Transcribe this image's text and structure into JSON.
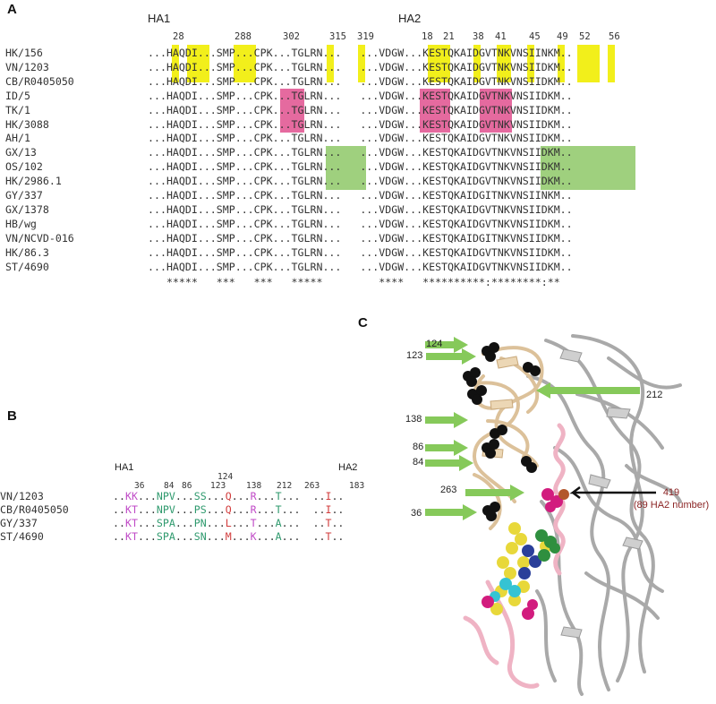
{
  "panels": {
    "a": "A",
    "b": "B",
    "c": "C"
  },
  "panel_a": {
    "ha1_label": "HA1",
    "ha2_label": "HA2",
    "positions": [
      "28",
      "288",
      "302",
      "315",
      "319",
      "18",
      "21",
      "38",
      "41",
      "45",
      "49",
      "52",
      "56"
    ],
    "rows": [
      {
        "name": "HK/156",
        "seq": "...HAQDI...SMP...CPK...TGLRN...   ...VDGW...KESTQKAIDGVTNKVNSIINKM.."
      },
      {
        "name": "VN/1203",
        "seq": "...HAQDI...SMP...CPK...TGLRN...   ...VDGW...KESTQKAIDGVTNKVNSIIDKM.."
      },
      {
        "name": "CB/R0405050",
        "seq": "...HAQDI...SMP...CPK...TGLRN...   ...VDGW...KESTQKAIDGVTNKVNSIIDKM.."
      },
      {
        "name": "ID/5",
        "seq": "...HAQDI...SMP...CPK...TGLRN...   ...VDGW...KESTQKAIDGVTNKVNSIIDKM.."
      },
      {
        "name": "TK/1",
        "seq": "...HAQDI...SMP...CPK...TGLRN...   ...VDGW...KESTQKAIDGVTNKVNSIIDKM.."
      },
      {
        "name": "HK/3088",
        "seq": "...HAQDI...SMP...CPK...TGLRN...   ...VDGW...KESTQKAIDGVTNKVNSIIDKM.."
      },
      {
        "name": "AH/1",
        "seq": "...HAQDI...SMP...CPK...TGLRN...   ...VDGW...KESTQKAIDGVTNKVNSIIDKM.."
      },
      {
        "name": "GX/13",
        "seq": "...HAQDI...SMP...CPK...TGLRN...   ...VDGW...KESTQKAIDGVTNKVNSIIDKM.."
      },
      {
        "name": "OS/102",
        "seq": "...HAQDI...SMP...CPK...TGLRN...   ...VDGW...KESTQKAIDGVTNKVNSIIDKM.."
      },
      {
        "name": "HK/2986.1",
        "seq": "...HAQDI...SMP...CPK...TGLRN...   ...VDGW...KESTQKAIDGVTNKVNSIIDKM.."
      },
      {
        "name": "GY/337",
        "seq": "...HAQDI...SMP...CPK...TGLRN...   ...VDGW...KESTQKAIDGITNKVNSIINKM.."
      },
      {
        "name": "GX/1378",
        "seq": "...HAQDI...SMP...CPK...TGLRN...   ...VDGW...KESTQKAIDGVTNKVNSIIDKM.."
      },
      {
        "name": "HB/wg",
        "seq": "...HAQDI...SMP...CPK...TGLRN...   ...VDGW...KESTQKAIDGVTNKVNSIIDKM.."
      },
      {
        "name": "VN/NCVD-016",
        "seq": "...HAQDI...SMP...CPK...TGLRN...   ...VDGW...KESTQKAIDGITNKVNSIIDKM.."
      },
      {
        "name": "HK/86.3",
        "seq": "...HAQDI...SMP...CPK...TGLRN...   ...VDGW...KESTQKAIDGVTNKVNSIIDKM.."
      },
      {
        "name": "ST/4690",
        "seq": "...HAQDI...SMP...CPK...TGLRN...   ...VDGW...KESTQKAIDGVTNKVNSIIDKM.."
      }
    ],
    "conservation": "   *****   ***   ***   *****         ****   **********:********:**",
    "highlight_colors": {
      "yellow": "#f2ef1b",
      "pink": "#e56a9f",
      "green": "#9fd07e"
    }
  },
  "panel_b": {
    "ha1_label": "HA1",
    "ha2_label": "HA2",
    "positions": [
      "36",
      "84",
      "86",
      "124",
      "123",
      "138",
      "212",
      "263",
      "183"
    ],
    "rows": [
      {
        "name": "VN/1203",
        "seq": "..KK...NPV...SS...Q...R...T...  ..I.."
      },
      {
        "name": "CB/R0405050",
        "seq": "..KT...NPV...PS...Q...R...T...  ..I.."
      },
      {
        "name": "GY/337",
        "seq": "..KT...SPA...PN...L...T...A...  ..T.."
      },
      {
        "name": "ST/4690",
        "seq": "..KT...SPA...SN...M...K...A...  ..T.."
      }
    ]
  },
  "panel_c": {
    "labels": [
      "124",
      "123",
      "138",
      "86",
      "84",
      "263",
      "36",
      "212"
    ],
    "annotation_line1": "419",
    "annotation_line2": "(89 HA2 number)",
    "colors": {
      "arrow": "#86c95a",
      "tan": "#e7cfa9",
      "grey": "#b8b8b8",
      "pink": "#efbcc8",
      "label": "#8b2424"
    }
  }
}
